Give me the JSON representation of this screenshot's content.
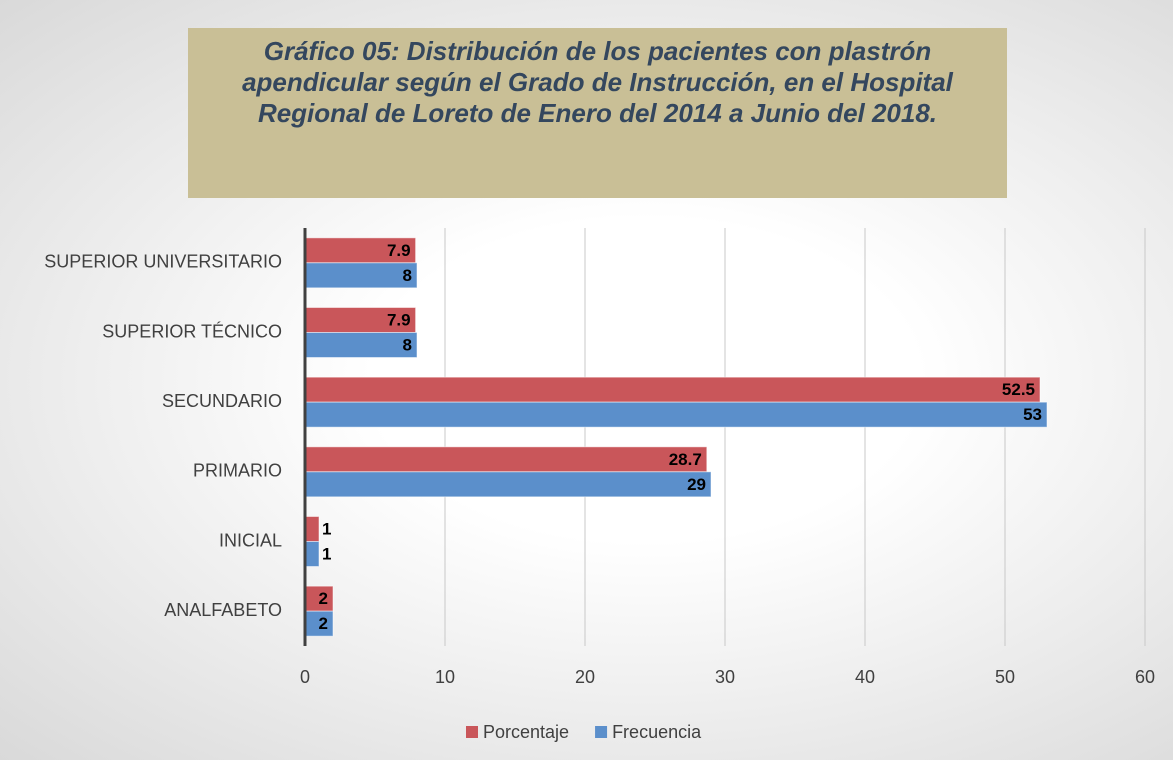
{
  "chart_data": {
    "type": "bar",
    "orientation": "horizontal",
    "title": "Gráfico 05: Distribución de los pacientes con plastrón apendicular según el Grado de Instrucción, en el Hospital Regional de Loreto de Enero del 2014 a Junio del 2018.",
    "categories": [
      "SUPERIOR UNIVERSITARIO",
      "SUPERIOR TÉCNICO",
      "SECUNDARIO",
      "PRIMARIO",
      "INICIAL",
      "ANALFABETO"
    ],
    "series": [
      {
        "name": "Porcentaje",
        "color": "#c9565a",
        "values": [
          7.9,
          7.9,
          52.5,
          28.7,
          1,
          2
        ]
      },
      {
        "name": "Frecuencia",
        "color": "#5b8fcb",
        "values": [
          8,
          8,
          53,
          29,
          1,
          2
        ]
      }
    ],
    "xlim": [
      0,
      60
    ],
    "xticks": [
      0,
      10,
      20,
      30,
      40,
      50,
      60
    ],
    "grid": true,
    "legend": "bottom"
  }
}
